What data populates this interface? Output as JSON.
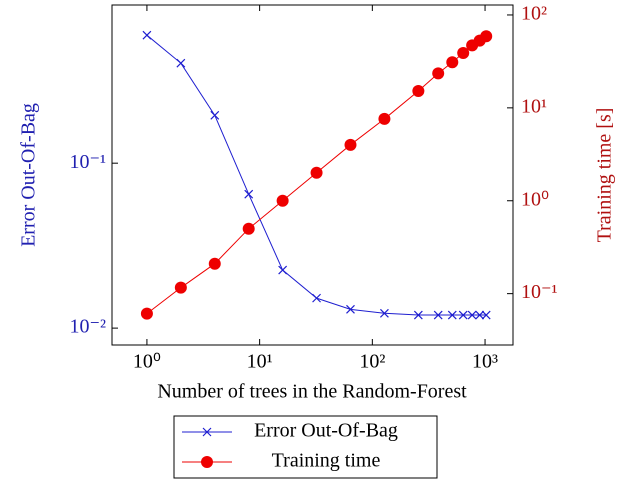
{
  "chart_data": {
    "type": "line",
    "xlabel": "Number of trees in the Random-Forest",
    "ylabel": "Error Out-Of-Bag",
    "y2label": "Training time [s]",
    "log_x": true,
    "log_y": true,
    "log_y2": true,
    "x": [
      1,
      2,
      4,
      8,
      16,
      32,
      64,
      128,
      256,
      384,
      512,
      640,
      768,
      896,
      1024
    ],
    "series": [
      {
        "name": "Error Out-Of-Bag",
        "color": "#1f1fd0",
        "marker": "x",
        "values": [
          0.597,
          0.404,
          0.195,
          0.0649,
          0.0225,
          0.0152,
          0.013,
          0.0123,
          0.012,
          0.012,
          0.012,
          0.012,
          0.012,
          0.012,
          0.012
        ]
      },
      {
        "name": "Training time",
        "color": "#ee0000",
        "marker": "circle",
        "axis": "y2",
        "values": [
          0.061,
          0.116,
          0.21,
          0.5,
          1.0,
          2.0,
          4.0,
          7.6,
          15.2,
          23.5,
          31,
          39,
          47,
          53,
          59
        ]
      }
    ],
    "xlim": [
      0.49,
      1770
    ],
    "xticks": [
      {
        "value": 1,
        "label": "10⁰"
      },
      {
        "value": 10,
        "label": "10¹"
      },
      {
        "value": 100,
        "label": "10²"
      },
      {
        "value": 1000,
        "label": "10³"
      }
    ],
    "ylim": [
      0.0079,
      0.91
    ],
    "yticks": [
      {
        "value": 0.01,
        "label": "10⁻²"
      },
      {
        "value": 0.1,
        "label": "10⁻¹"
      }
    ],
    "y2lim": [
      0.028,
      128
    ],
    "y2ticks": [
      {
        "value": 0.1,
        "label": "10⁻¹"
      },
      {
        "value": 1,
        "label": "10⁰"
      },
      {
        "value": 10,
        "label": "10¹"
      },
      {
        "value": 100,
        "label": "10²"
      }
    ],
    "ycolor": "#2020b0",
    "y2color": "#b01010",
    "legend": "bottom"
  }
}
